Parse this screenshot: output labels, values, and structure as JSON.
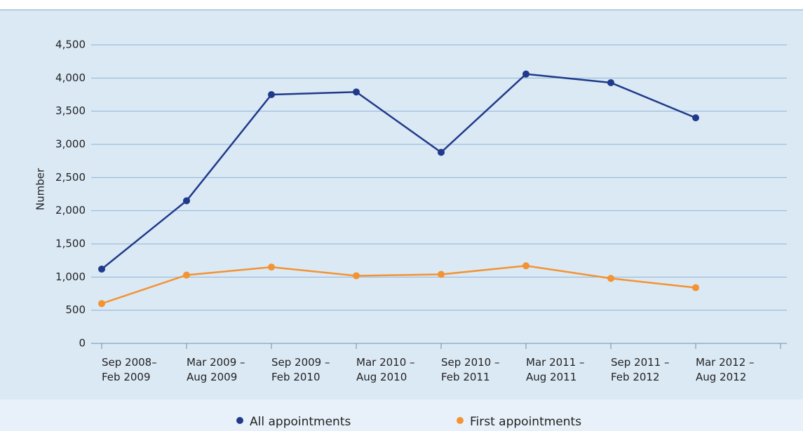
{
  "chart_data": {
    "type": "line",
    "y_label": "Number",
    "categories": [
      "Sep 2008–\nFeb 2009",
      "Mar 2009 –\nAug 2009",
      "Sep 2009 –\nFeb 2010",
      "Mar 2010 –\nAug 2010",
      "Sep 2010 –\nFeb 2011",
      "Mar 2011 –\nAug 2011",
      "Sep 2011 –\nFeb 2012",
      "Mar 2012 –\nAug 2012"
    ],
    "series": [
      {
        "name": "All appointments",
        "color": "#1f3a8a",
        "values": [
          1120,
          2150,
          3750,
          3790,
          2880,
          4060,
          3930,
          3400
        ]
      },
      {
        "name": "First appointments",
        "color": "#f39333",
        "values": [
          600,
          1030,
          1150,
          1020,
          1040,
          1170,
          980,
          840
        ]
      }
    ],
    "ylim": [
      0,
      4500
    ],
    "yticks": [
      0,
      500,
      {
        "value": 1000,
        "label": "1,000"
      },
      {
        "value": 1500,
        "label": "1,500"
      },
      {
        "value": 2000,
        "label": "2,000"
      },
      {
        "value": 2500,
        "label": "2,500"
      },
      {
        "value": 3000,
        "label": "3,000"
      },
      {
        "value": 3500,
        "label": "3,500"
      },
      {
        "value": 4000,
        "label": "4,000"
      },
      {
        "value": 4500,
        "label": "4,500"
      }
    ],
    "grid": true,
    "legend": "bottom"
  }
}
